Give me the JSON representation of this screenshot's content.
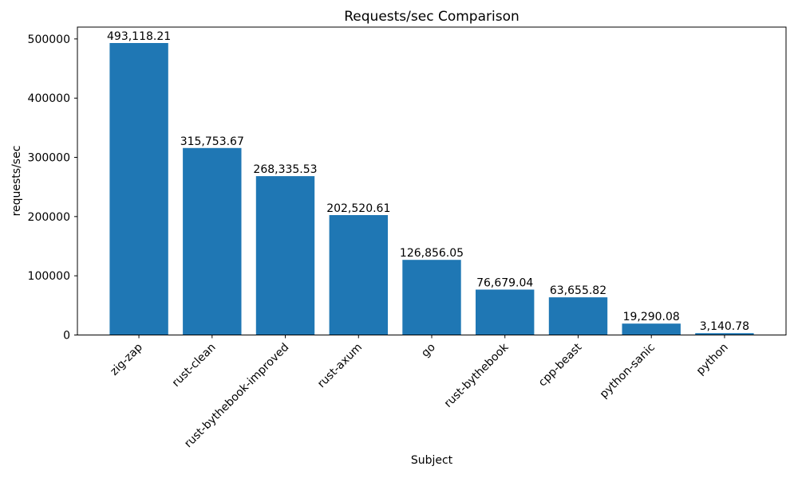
{
  "chart_data": {
    "type": "bar",
    "title": "Requests/sec Comparison",
    "xlabel": "Subject",
    "ylabel": "requests/sec",
    "categories": [
      "zig-zap",
      "rust-clean",
      "rust-bythebook-improved",
      "rust-axum",
      "go",
      "rust-bythebook",
      "cpp-beast",
      "python-sanic",
      "python"
    ],
    "values": [
      493118.21,
      315753.67,
      268335.53,
      202520.61,
      126856.05,
      76679.04,
      63655.82,
      19290.08,
      3140.78
    ],
    "value_labels": [
      "493,118.21",
      "315,753.67",
      "268,335.53",
      "202,520.61",
      "126,856.05",
      "76,679.04",
      "63,655.82",
      "19,290.08",
      "3,140.78"
    ],
    "yticks": [
      0,
      100000,
      200000,
      300000,
      400000,
      500000
    ],
    "ytick_labels": [
      "0",
      "100000",
      "200000",
      "300000",
      "400000",
      "500000"
    ],
    "ylim": [
      0,
      520000
    ],
    "bar_color": "#1f77b4",
    "axis_color": "#000000",
    "text_color": "#000000",
    "xtick_rotation": 45,
    "grid": false,
    "legend_position": "none"
  }
}
